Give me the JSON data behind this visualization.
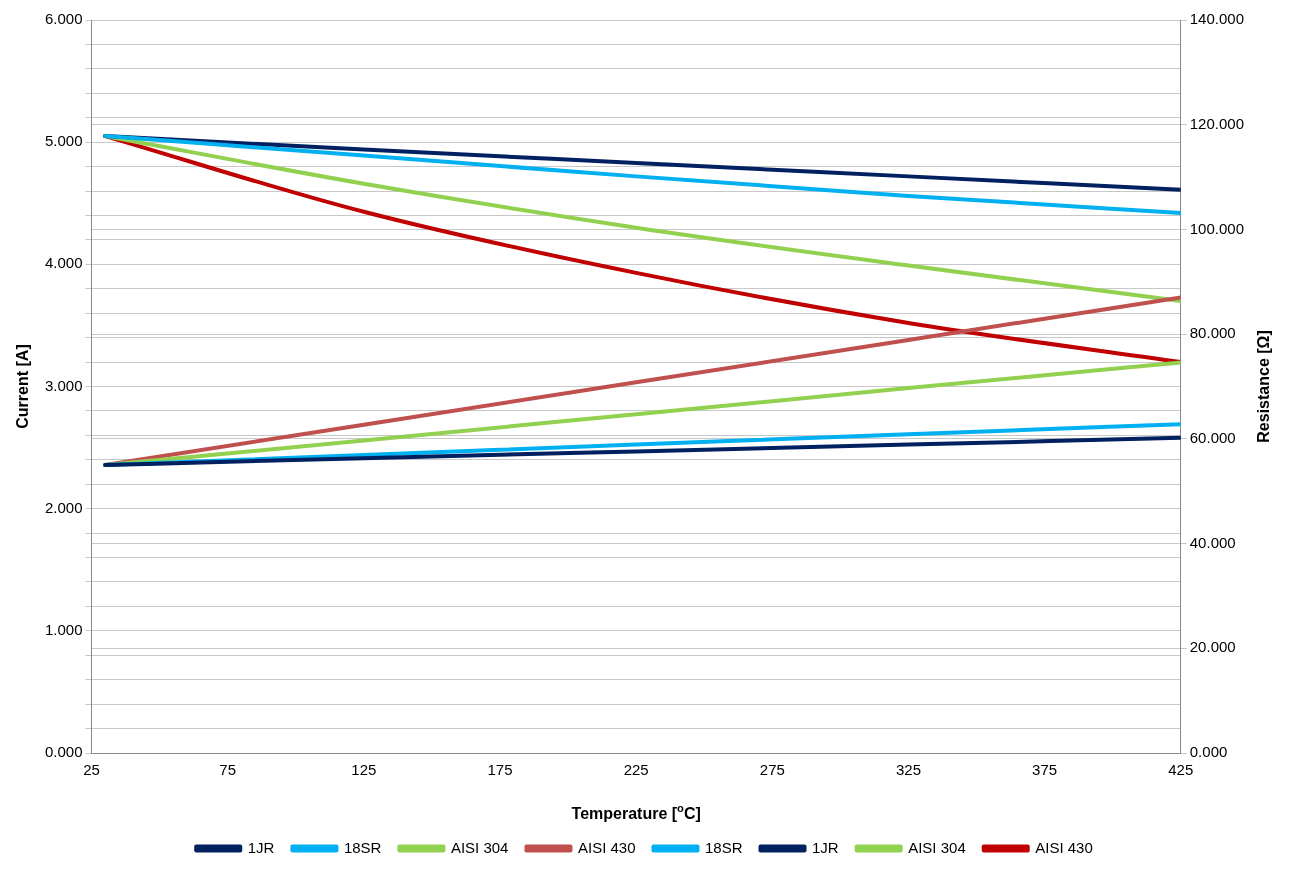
{
  "chart_data": {
    "type": "line",
    "xlabel": "Temperature [$^{o}$C]",
    "ylabel": "Current [A]",
    "y2label": "Resistance [Ω]",
    "x": [
      30,
      125,
      225,
      325,
      425
    ],
    "xlim": [
      25,
      425
    ],
    "xticks": [
      25,
      75,
      125,
      175,
      225,
      275,
      325,
      375,
      425
    ],
    "ylim": [
      0,
      6
    ],
    "yticks": [
      {
        "value": 0,
        "label": "0.000"
      },
      {
        "value": 0.2,
        "label": null
      },
      {
        "value": 0.4,
        "label": null
      },
      {
        "value": 0.6,
        "label": null
      },
      {
        "value": 0.8,
        "label": null
      },
      {
        "value": 1,
        "label": "1.000"
      },
      {
        "value": 1.2,
        "label": null
      },
      {
        "value": 1.4,
        "label": null
      },
      {
        "value": 1.6,
        "label": null
      },
      {
        "value": 1.8,
        "label": null
      },
      {
        "value": 2,
        "label": "2.000"
      },
      {
        "value": 2.2,
        "label": null
      },
      {
        "value": 2.4,
        "label": null
      },
      {
        "value": 2.6,
        "label": null
      },
      {
        "value": 2.8,
        "label": null
      },
      {
        "value": 3,
        "label": "3.000"
      },
      {
        "value": 3.2,
        "label": null
      },
      {
        "value": 3.4,
        "label": null
      },
      {
        "value": 3.6,
        "label": null
      },
      {
        "value": 3.8,
        "label": null
      },
      {
        "value": 4,
        "label": "4.000"
      },
      {
        "value": 4.2,
        "label": null
      },
      {
        "value": 4.4,
        "label": null
      },
      {
        "value": 4.6,
        "label": null
      },
      {
        "value": 4.8,
        "label": null
      },
      {
        "value": 5,
        "label": "5.000"
      },
      {
        "value": 5.2,
        "label": null
      },
      {
        "value": 5.4,
        "label": null
      },
      {
        "value": 5.6,
        "label": null
      },
      {
        "value": 5.8,
        "label": null
      },
      {
        "value": 6,
        "label": "6.000"
      }
    ],
    "y2lim": [
      0,
      140
    ],
    "y2ticks": [
      {
        "value": 0,
        "label": "0.000"
      },
      {
        "value": 20,
        "label": "20.000"
      },
      {
        "value": 40,
        "label": "40.000"
      },
      {
        "value": 60,
        "label": "60.000"
      },
      {
        "value": 80,
        "label": "80.000"
      },
      {
        "value": 100,
        "label": "100.000"
      },
      {
        "value": 120,
        "label": "120.000"
      },
      {
        "value": 140,
        "label": "140.000"
      }
    ],
    "grid": "y",
    "legend": "bottom",
    "marker": "none",
    "line_style": "solid",
    "series": [
      {
        "name": "1JR",
        "color": "#002060",
        "axis": "y2",
        "values": [
          55,
          56.3,
          57.6,
          58.9,
          60.2
        ]
      },
      {
        "name": "18SR",
        "color": "#00b0f0",
        "axis": "y2",
        "values": [
          55,
          56.9,
          58.9,
          60.9,
          62.8
        ]
      },
      {
        "name": "AISI 304",
        "color": "#92d050",
        "axis": "y2",
        "values": [
          55,
          59.7,
          64.7,
          69.7,
          74.6
        ]
      },
      {
        "name": "AISI 430",
        "color": "#c0504d",
        "axis": "y2",
        "values": [
          55,
          62.7,
          70.8,
          78.9,
          87.0
        ]
      },
      {
        "name": "18SR",
        "color": "#00b0f0",
        "values": [
          5.05,
          4.89,
          4.72,
          4.56,
          4.42
        ]
      },
      {
        "name": "1JR",
        "color": "#002060",
        "values": [
          5.05,
          4.94,
          4.83,
          4.72,
          4.61
        ]
      },
      {
        "name": "AISI 304",
        "color": "#92d050",
        "values": [
          5.05,
          4.66,
          4.3,
          3.99,
          3.7
        ]
      },
      {
        "name": "AISI 430",
        "color": "#c00000",
        "values": [
          5.05,
          4.43,
          3.93,
          3.52,
          3.2
        ]
      }
    ]
  }
}
